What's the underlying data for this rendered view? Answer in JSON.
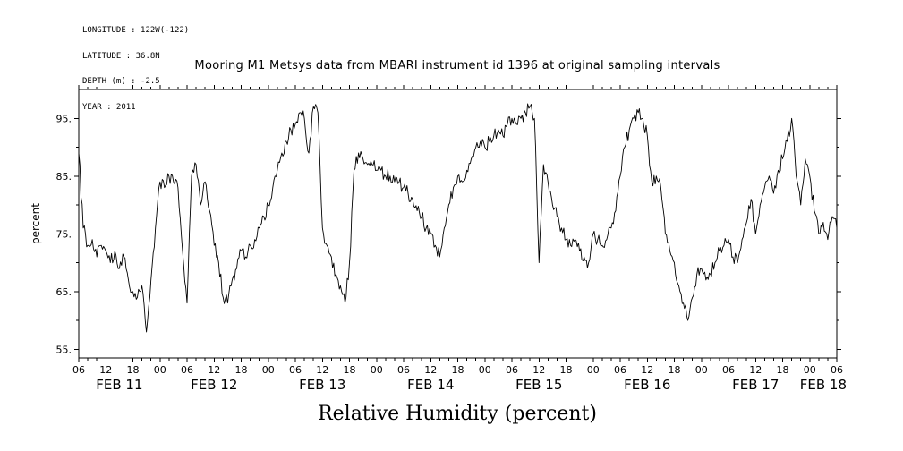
{
  "meta_block": {
    "lines": [
      "LONGITUDE : 122W(-122)",
      "LATITUDE : 36.8N",
      "DEPTH (m) : -2.5",
      "YEAR : 2011"
    ]
  },
  "title": "Mooring M1 Metsys data from MBARI instrument id 1396 at original sampling intervals",
  "chart_data": {
    "type": "line",
    "title": "Mooring M1 Metsys data from MBARI instrument id 1396 at original sampling intervals",
    "xlabel": "Relative Humidity (percent)",
    "ylabel": "percent",
    "line_color": "#000000",
    "background_color": "#ffffff",
    "grid": false,
    "noise_amplitude": 1.2,
    "x_axis": {
      "start": "2011-02-11 06:00",
      "end": "2011-02-18 06:00",
      "unit": "hours since 2011-02-11 06:00",
      "range_hours": [
        0,
        168
      ],
      "major_tick_step_hours": 6,
      "minor_tick_step_hours": 2,
      "tick_labels": [
        "06",
        "12",
        "18",
        "00",
        "06",
        "12",
        "18",
        "00",
        "06",
        "12",
        "18",
        "00",
        "06",
        "12",
        "18",
        "00",
        "06",
        "12",
        "18",
        "00",
        "06",
        "12",
        "18",
        "00",
        "06",
        "12",
        "18",
        "00",
        "06"
      ],
      "date_labels": [
        {
          "label": "FEB 11",
          "center_hour": 9
        },
        {
          "label": "FEB 12",
          "center_hour": 30
        },
        {
          "label": "FEB 13",
          "center_hour": 54
        },
        {
          "label": "FEB 14",
          "center_hour": 78
        },
        {
          "label": "FEB 15",
          "center_hour": 102
        },
        {
          "label": "FEB 16",
          "center_hour": 126
        },
        {
          "label": "FEB 17",
          "center_hour": 150
        },
        {
          "label": "FEB 18",
          "center_hour": 165
        }
      ]
    },
    "y_axis": {
      "range": [
        53.5,
        100
      ],
      "major_ticks": [
        55,
        65,
        75,
        85,
        95
      ],
      "major_tick_labels": [
        "55.",
        "65.",
        "75.",
        "85.",
        "95."
      ],
      "minor_ticks": [
        60,
        70,
        80,
        90
      ]
    },
    "series": [
      {
        "name": "relative_humidity",
        "start_hour": 0,
        "sample_step_hours": 1,
        "values": [
          89,
          76,
          73,
          74,
          71,
          73,
          72,
          70,
          72,
          69,
          71,
          67,
          65,
          64,
          66,
          58,
          67,
          76,
          84,
          83,
          85,
          84,
          83,
          72,
          63,
          85,
          87,
          80,
          84,
          79,
          73,
          70,
          64,
          63,
          67,
          69,
          72,
          71,
          73,
          74,
          76,
          78,
          80,
          83,
          86,
          89,
          91,
          93,
          94,
          96,
          95,
          89,
          97,
          96,
          76,
          73,
          71,
          68,
          66,
          63,
          70,
          86,
          89,
          88,
          87,
          87,
          86,
          86,
          85,
          85,
          84,
          84,
          83,
          82,
          81,
          79,
          78,
          76,
          75,
          73,
          71,
          76,
          80,
          83,
          85,
          84,
          86,
          88,
          90,
          91,
          90,
          91,
          92,
          93,
          92,
          94,
          95,
          94,
          95,
          96,
          97,
          95,
          70,
          87,
          84,
          80,
          78,
          76,
          74,
          73,
          74,
          72,
          71,
          70,
          75,
          74,
          73,
          74,
          76,
          79,
          85,
          90,
          93,
          95,
          96,
          95,
          92,
          84,
          85,
          83,
          75,
          72,
          70,
          66,
          63,
          60,
          64,
          68,
          69,
          67,
          68,
          70,
          72,
          73,
          74,
          71,
          70,
          74,
          77,
          81,
          75,
          80,
          83,
          85,
          82,
          86,
          88,
          91,
          95,
          85,
          80,
          88,
          85,
          79,
          75,
          77,
          74,
          78,
          76
        ]
      }
    ]
  }
}
